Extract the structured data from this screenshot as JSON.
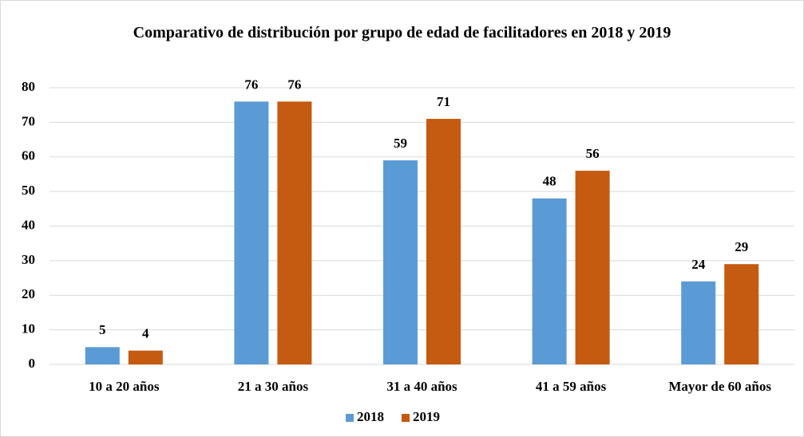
{
  "chart_data": {
    "type": "bar",
    "title": "Comparativo de distribución por grupo de edad de facilitadores en 2018 y 2019",
    "categories": [
      "10 a 20 años",
      "21 a 30 años",
      "31 a 40 años",
      "41 a 59 años",
      "Mayor de 60 años"
    ],
    "series": [
      {
        "name": "2018",
        "color": "#5b9bd5",
        "values": [
          5,
          76,
          59,
          48,
          24
        ]
      },
      {
        "name": "2019",
        "color": "#c55a11",
        "values": [
          4,
          76,
          71,
          56,
          29
        ]
      }
    ],
    "ylim": [
      0,
      80
    ],
    "yticks": [
      0,
      10,
      20,
      30,
      40,
      50,
      60,
      70,
      80
    ],
    "grid": true,
    "legend": "bottom"
  }
}
